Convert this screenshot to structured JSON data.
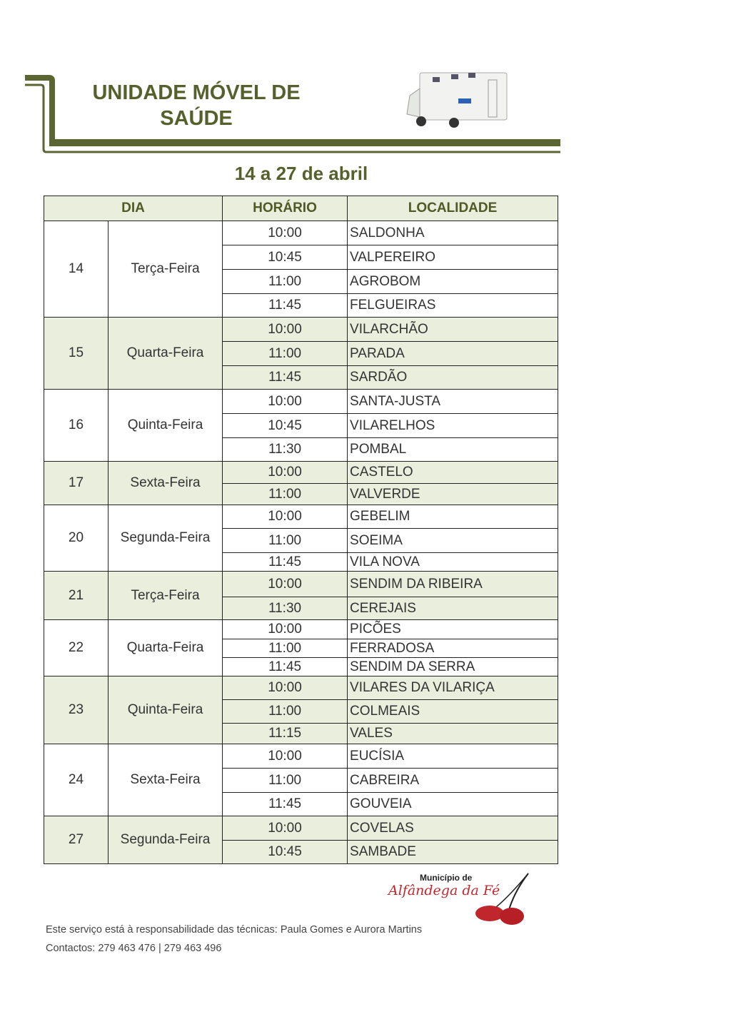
{
  "header": {
    "title_line1": "UNIDADE MÓVEL DE",
    "title_line2": "SAÚDE",
    "date_range": "14 a 27 de abril"
  },
  "colors": {
    "olive": "#5b6531",
    "row_tint": "#eaeedd",
    "logo_red": "#c0272d"
  },
  "table": {
    "columns": [
      "DIA",
      "HORÁRIO",
      "LOCALIDADE"
    ],
    "days": [
      {
        "day": "14",
        "weekday": "Terça-Feira",
        "stops": [
          [
            "10:00",
            "SALDONHA"
          ],
          [
            "10:45",
            "VALPEREIRO"
          ],
          [
            "11:00",
            "AGROBOM"
          ],
          [
            "11:45",
            "FELGUEIRAS"
          ]
        ]
      },
      {
        "day": "15",
        "weekday": "Quarta-Feira",
        "stops": [
          [
            "10:00",
            "VILARCHÃO"
          ],
          [
            "11:00",
            "PARADA"
          ],
          [
            "11:45",
            "SARDÃO"
          ]
        ]
      },
      {
        "day": "16",
        "weekday": "Quinta-Feira",
        "stops": [
          [
            "10:00",
            "SANTA-JUSTA"
          ],
          [
            "10:45",
            "VILARELHOS"
          ],
          [
            "11:30",
            "POMBAL"
          ]
        ]
      },
      {
        "day": "17",
        "weekday": "Sexta-Feira",
        "stops": [
          [
            "10:00",
            "CASTELO"
          ],
          [
            "11:00",
            "VALVERDE"
          ]
        ]
      },
      {
        "day": "20",
        "weekday": "Segunda-Feira",
        "stops": [
          [
            "10:00",
            "GEBELIM"
          ],
          [
            "11:00",
            "SOEIMA"
          ],
          [
            "11:45",
            "VILA NOVA"
          ]
        ]
      },
      {
        "day": "21",
        "weekday": "Terça-Feira",
        "stops": [
          [
            "10:00",
            "SENDIM DA RIBEIRA"
          ],
          [
            "11:30",
            "CEREJAIS"
          ]
        ]
      },
      {
        "day": "22",
        "weekday": "Quarta-Feira",
        "stops": [
          [
            "10:00",
            "PICÕES"
          ],
          [
            "11:00",
            "FERRADOSA"
          ],
          [
            "11:45",
            "SENDIM DA SERRA"
          ]
        ]
      },
      {
        "day": "23",
        "weekday": "Quinta-Feira",
        "stops": [
          [
            "10:00",
            "VILARES DA VILARIÇA"
          ],
          [
            "11:00",
            "COLMEAIS"
          ],
          [
            "11:15",
            "VALES"
          ]
        ]
      },
      {
        "day": "24",
        "weekday": "Sexta-Feira",
        "stops": [
          [
            "10:00",
            "EUCÍSIA"
          ],
          [
            "11:00",
            "CABREIRA"
          ],
          [
            "11:45",
            "GOUVEIA"
          ]
        ]
      },
      {
        "day": "27",
        "weekday": "Segunda-Feira",
        "stops": [
          [
            "10:00",
            "COVELAS"
          ],
          [
            "10:45",
            "SAMBADE"
          ]
        ]
      }
    ]
  },
  "logo": {
    "line1": "Município de",
    "line2": "Alfândega da Fé"
  },
  "footer": {
    "responsibility": "Este serviço está à responsabilidade das técnicas:  Paula Gomes e Aurora Martins",
    "contacts": "Contactos: 279 463 476  |  279 463 496"
  }
}
